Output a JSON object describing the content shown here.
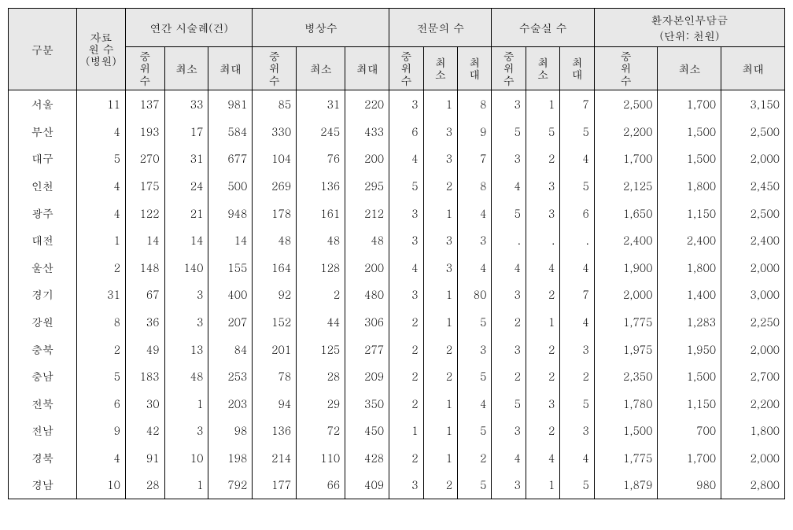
{
  "headers": {
    "col_region": "구분",
    "col_sources": "자료\n원 수\n(병원)",
    "group_procedures": "연간 시술례(건)",
    "group_beds": "병상수",
    "group_specialists": "전문의 수",
    "group_or": "수술실 수",
    "group_cost": "환자본인부담금\n(단위: 천원)",
    "sub_median": "중\n위\n수",
    "sub_min": "최소",
    "sub_max": "최대",
    "sub_min_v": "최\n소",
    "sub_max_v": "최\n대"
  },
  "colors": {
    "header_bg": "#e8e8e8",
    "border": "#000000",
    "text": "#000000",
    "background": "#ffffff"
  },
  "rows": [
    {
      "region": "서울",
      "sources": "11",
      "proc_med": "137",
      "proc_min": "33",
      "proc_max": "981",
      "bed_med": "85",
      "bed_min": "31",
      "bed_max": "220",
      "sp_med": "3",
      "sp_min": "1",
      "sp_max": "8",
      "or_med": "3",
      "or_min": "1",
      "or_max": "7",
      "cost_med": "2,500",
      "cost_min": "1,700",
      "cost_max": "3,150"
    },
    {
      "region": "부산",
      "sources": "4",
      "proc_med": "193",
      "proc_min": "17",
      "proc_max": "584",
      "bed_med": "330",
      "bed_min": "245",
      "bed_max": "433",
      "sp_med": "6",
      "sp_min": "3",
      "sp_max": "9",
      "or_med": "5",
      "or_min": "5",
      "or_max": "5",
      "cost_med": "2,200",
      "cost_min": "1,500",
      "cost_max": "2,500"
    },
    {
      "region": "대구",
      "sources": "5",
      "proc_med": "270",
      "proc_min": "31",
      "proc_max": "677",
      "bed_med": "104",
      "bed_min": "76",
      "bed_max": "200",
      "sp_med": "4",
      "sp_min": "3",
      "sp_max": "7",
      "or_med": "3",
      "or_min": "2",
      "or_max": "4",
      "cost_med": "1,700",
      "cost_min": "1,500",
      "cost_max": "2,000"
    },
    {
      "region": "인천",
      "sources": "4",
      "proc_med": "175",
      "proc_min": "24",
      "proc_max": "500",
      "bed_med": "269",
      "bed_min": "136",
      "bed_max": "295",
      "sp_med": "5",
      "sp_min": "2",
      "sp_max": "8",
      "or_med": "4",
      "or_min": "3",
      "or_max": "5",
      "cost_med": "2,125",
      "cost_min": "1,800",
      "cost_max": "2,450"
    },
    {
      "region": "광주",
      "sources": "4",
      "proc_med": "122",
      "proc_min": "21",
      "proc_max": "948",
      "bed_med": "178",
      "bed_min": "161",
      "bed_max": "212",
      "sp_med": "3",
      "sp_min": "1",
      "sp_max": "4",
      "or_med": "5",
      "or_min": "3",
      "or_max": "6",
      "cost_med": "1,650",
      "cost_min": "1,150",
      "cost_max": "2,500"
    },
    {
      "region": "대전",
      "sources": "1",
      "proc_med": "14",
      "proc_min": "14",
      "proc_max": "14",
      "bed_med": "48",
      "bed_min": "48",
      "bed_max": "48",
      "sp_med": "3",
      "sp_min": "3",
      "sp_max": "3",
      "or_med": ".",
      "or_min": ".",
      "or_max": ".",
      "cost_med": "2,400",
      "cost_min": "2,400",
      "cost_max": "2,400"
    },
    {
      "region": "울산",
      "sources": "2",
      "proc_med": "148",
      "proc_min": "140",
      "proc_max": "155",
      "bed_med": "164",
      "bed_min": "128",
      "bed_max": "200",
      "sp_med": "4",
      "sp_min": "3",
      "sp_max": "4",
      "or_med": "4",
      "or_min": "4",
      "or_max": "4",
      "cost_med": "1,900",
      "cost_min": "1,800",
      "cost_max": "2,000"
    },
    {
      "region": "경기",
      "sources": "31",
      "proc_med": "67",
      "proc_min": "3",
      "proc_max": "400",
      "bed_med": "92",
      "bed_min": "2",
      "bed_max": "480",
      "sp_med": "3",
      "sp_min": "1",
      "sp_max": "80",
      "or_med": "3",
      "or_min": "2",
      "or_max": "7",
      "cost_med": "2,000",
      "cost_min": "1,400",
      "cost_max": "3,000"
    },
    {
      "region": "강원",
      "sources": "8",
      "proc_med": "36",
      "proc_min": "3",
      "proc_max": "207",
      "bed_med": "152",
      "bed_min": "44",
      "bed_max": "306",
      "sp_med": "2",
      "sp_min": "1",
      "sp_max": "5",
      "or_med": "2",
      "or_min": "1",
      "or_max": "4",
      "cost_med": "1,775",
      "cost_min": "1,283",
      "cost_max": "2,250"
    },
    {
      "region": "충북",
      "sources": "2",
      "proc_med": "49",
      "proc_min": "13",
      "proc_max": "84",
      "bed_med": "201",
      "bed_min": "125",
      "bed_max": "277",
      "sp_med": "2",
      "sp_min": "2",
      "sp_max": "3",
      "or_med": "3",
      "or_min": "2",
      "or_max": "3",
      "cost_med": "1,975",
      "cost_min": "1,950",
      "cost_max": "2,000"
    },
    {
      "region": "충남",
      "sources": "5",
      "proc_med": "183",
      "proc_min": "48",
      "proc_max": "253",
      "bed_med": "78",
      "bed_min": "28",
      "bed_max": "209",
      "sp_med": "2",
      "sp_min": "2",
      "sp_max": "5",
      "or_med": "2",
      "or_min": "2",
      "or_max": "2",
      "cost_med": "2,350",
      "cost_min": "1,500",
      "cost_max": "2,700"
    },
    {
      "region": "전북",
      "sources": "6",
      "proc_med": "30",
      "proc_min": "1",
      "proc_max": "203",
      "bed_med": "94",
      "bed_min": "29",
      "bed_max": "350",
      "sp_med": "2",
      "sp_min": "1",
      "sp_max": "4",
      "or_med": "5",
      "or_min": "3",
      "or_max": "5",
      "cost_med": "1,780",
      "cost_min": "1,150",
      "cost_max": "2,200"
    },
    {
      "region": "전남",
      "sources": "9",
      "proc_med": "42",
      "proc_min": "3",
      "proc_max": "98",
      "bed_med": "136",
      "bed_min": "72",
      "bed_max": "450",
      "sp_med": "1",
      "sp_min": "1",
      "sp_max": "5",
      "or_med": "3",
      "or_min": "2",
      "or_max": "3",
      "cost_med": "1,500",
      "cost_min": "700",
      "cost_max": "1,800"
    },
    {
      "region": "경북",
      "sources": "4",
      "proc_med": "91",
      "proc_min": "10",
      "proc_max": "198",
      "bed_med": "214",
      "bed_min": "110",
      "bed_max": "428",
      "sp_med": "2",
      "sp_min": "1",
      "sp_max": "2",
      "or_med": "4",
      "or_min": "4",
      "or_max": "4",
      "cost_med": "1,775",
      "cost_min": "1,700",
      "cost_max": "2,000"
    },
    {
      "region": "경남",
      "sources": "10",
      "proc_med": "28",
      "proc_min": "1",
      "proc_max": "792",
      "bed_med": "177",
      "bed_min": "66",
      "bed_max": "409",
      "sp_med": "3",
      "sp_min": "2",
      "sp_max": "5",
      "or_med": "3",
      "or_min": "1",
      "or_max": "5",
      "cost_med": "1,879",
      "cost_min": "980",
      "cost_max": "2,800"
    }
  ]
}
